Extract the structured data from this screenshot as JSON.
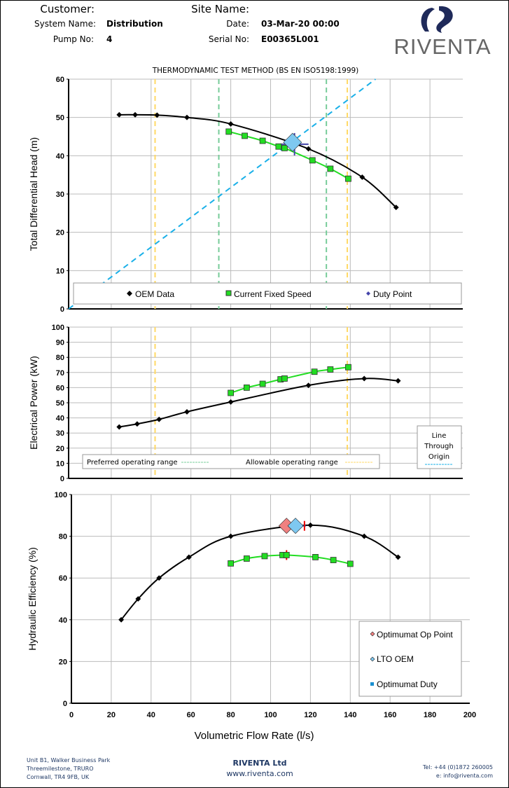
{
  "header": {
    "customer_label": "Customer:",
    "customer_value": "",
    "site_label": "Site Name:",
    "site_value": "",
    "system_label": "System Name:",
    "system_value": "Distribution",
    "date_label": "Date:",
    "date_value": "03-Mar-20 00:00",
    "pump_label": "Pump No:",
    "pump_value": "4",
    "serial_label": "Serial No:",
    "serial_value": "E00365L001",
    "logo_text": "RIVENTA"
  },
  "footer": {
    "address": [
      "Unit B1, Walker Business Park",
      "Threemilestone, TRURO",
      "Cornwall, TR4 9FB, UK"
    ],
    "company": "RIVENTA Ltd",
    "website": "www.riventa.com",
    "tel": "Tel: +44 (0)1872 260005",
    "email": "e: info@riventa.com"
  },
  "colors": {
    "oem": "#000000",
    "current": "#22dd22",
    "duty": "#4444aa",
    "preferred": "#77cc99",
    "allowable": "#ffd966",
    "origin": "#1ab0e8",
    "op_point": "#f08080",
    "lto": "#7ec8f0"
  },
  "chart_data": [
    {
      "type": "line",
      "title": "THERMODYNAMIC TEST METHOD (BS EN ISO5198:1999)",
      "ylabel": "Total Differential Head (m)",
      "xlim": [
        0,
        196
      ],
      "ylim": [
        0,
        60
      ],
      "yticks": [
        0,
        10,
        20,
        30,
        40,
        50,
        60
      ],
      "grid": true,
      "series": [
        {
          "name": "OEM Data",
          "x": [
            24,
            32,
            43,
            58,
            80,
            119,
            146,
            163
          ],
          "y": [
            50.7,
            50.7,
            50.6,
            50.0,
            48.3,
            41.8,
            34.4,
            26.5
          ]
        },
        {
          "name": "Current Fixed Speed",
          "x": [
            79,
            87,
            96,
            104,
            107,
            121,
            130,
            139
          ],
          "y": [
            46.3,
            45.2,
            43.9,
            42.4,
            42.0,
            38.8,
            36.6,
            34.0
          ]
        },
        {
          "name": "Duty Point",
          "x": [
            112
          ],
          "y": [
            43
          ]
        }
      ],
      "lto_point": {
        "x": 111,
        "y": 43.5
      },
      "line_through_origin": {
        "slope": 0.393
      },
      "preferred_range": [
        74,
        128
      ],
      "allowable_range": [
        42,
        138.5
      ],
      "legend": [
        "OEM Data",
        "Current Fixed Speed",
        "Duty Point"
      ]
    },
    {
      "type": "line",
      "ylabel": "Electrical Power (kW)",
      "xlim": [
        0,
        196
      ],
      "ylim": [
        0,
        100
      ],
      "yticks": [
        0,
        10,
        20,
        30,
        40,
        50,
        60,
        70,
        80,
        90,
        100
      ],
      "grid": true,
      "series": [
        {
          "name": "OEM Data",
          "x": [
            24,
            33,
            44,
            58,
            80,
            119,
            147,
            164
          ],
          "y": [
            34,
            36,
            39,
            44,
            50.5,
            61.5,
            66,
            64.5
          ]
        },
        {
          "name": "Current Fixed Speed",
          "x": [
            80,
            88,
            96,
            105,
            107,
            122,
            130,
            139
          ],
          "y": [
            56.5,
            60,
            62.5,
            65.5,
            66,
            70.5,
            72,
            73.5
          ]
        }
      ],
      "legend": [
        "Preferred operating range",
        "Allowable operating range",
        "Line Through Origin"
      ]
    },
    {
      "type": "line",
      "ylabel": "Hydraulic Efficiency (%)",
      "xlabel": "Volumetric Flow Rate (l/s)",
      "xlim": [
        0,
        200
      ],
      "ylim": [
        0,
        100
      ],
      "xticks": [
        0,
        20,
        40,
        60,
        80,
        100,
        120,
        140,
        160,
        180,
        200
      ],
      "yticks": [
        0,
        20,
        40,
        60,
        80,
        100
      ],
      "grid": true,
      "series": [
        {
          "name": "OEM Data",
          "x": [
            25,
            33.5,
            44,
            59,
            80,
            120,
            147,
            164
          ],
          "y": [
            40,
            50,
            60,
            70,
            80,
            85.3,
            80,
            70
          ]
        },
        {
          "name": "Current Fixed Speed",
          "x": [
            80,
            88,
            97,
            106,
            108,
            122.5,
            131.5,
            140
          ],
          "y": [
            67,
            69.3,
            70.5,
            71,
            71,
            70,
            68.6,
            66.8
          ]
        }
      ],
      "op_point": {
        "x": 108,
        "y": 85
      },
      "lto_oem": {
        "x": 112.5,
        "y": 85
      },
      "duty": {
        "x": 115,
        "y": 85
      },
      "legend": [
        "Optimumat Op Point",
        "LTO OEM",
        "Optimumat Duty"
      ]
    }
  ]
}
